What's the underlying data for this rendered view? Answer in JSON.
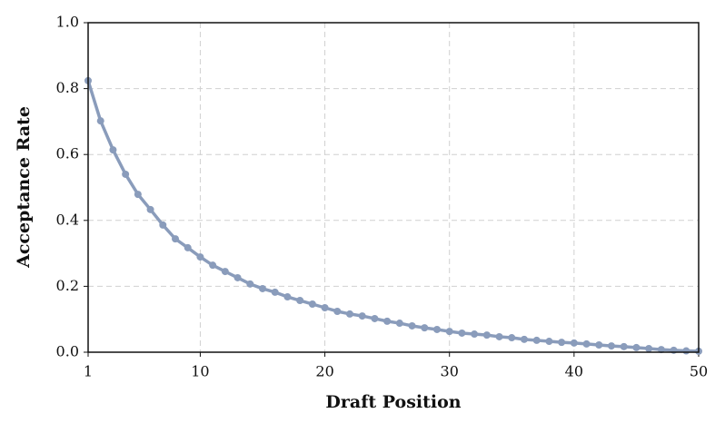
{
  "chart_data": {
    "type": "line",
    "xlabel": "Draft Position",
    "ylabel": "Acceptance Rate",
    "x": [
      1,
      2,
      3,
      4,
      5,
      6,
      7,
      8,
      9,
      10,
      11,
      12,
      13,
      14,
      15,
      16,
      17,
      18,
      19,
      20,
      21,
      22,
      23,
      24,
      25,
      26,
      27,
      28,
      29,
      30,
      31,
      32,
      33,
      34,
      35,
      36,
      37,
      38,
      39,
      40,
      41,
      42,
      43,
      44,
      45,
      46,
      47,
      48,
      49,
      50
    ],
    "series": [
      {
        "color": "#8a9cbb",
        "values": [
          0.824,
          0.702,
          0.614,
          0.54,
          0.479,
          0.433,
          0.386,
          0.344,
          0.317,
          0.289,
          0.264,
          0.245,
          0.226,
          0.207,
          0.193,
          0.182,
          0.168,
          0.157,
          0.146,
          0.135,
          0.124,
          0.116,
          0.11,
          0.102,
          0.094,
          0.088,
          0.08,
          0.074,
          0.069,
          0.063,
          0.058,
          0.055,
          0.052,
          0.047,
          0.044,
          0.039,
          0.036,
          0.033,
          0.03,
          0.028,
          0.025,
          0.022,
          0.019,
          0.017,
          0.014,
          0.011,
          0.008,
          0.006,
          0.004,
          0.003
        ]
      }
    ],
    "xlim": [
      1,
      50
    ],
    "xticks": [
      1,
      10,
      20,
      30,
      40,
      50
    ],
    "ylim": [
      0,
      1
    ],
    "yticks": [
      {
        "value": 0,
        "label": "0.0"
      },
      0.2,
      0.4,
      0.6,
      0.8,
      {
        "value": 1,
        "label": "1.0"
      }
    ],
    "grid": true
  }
}
